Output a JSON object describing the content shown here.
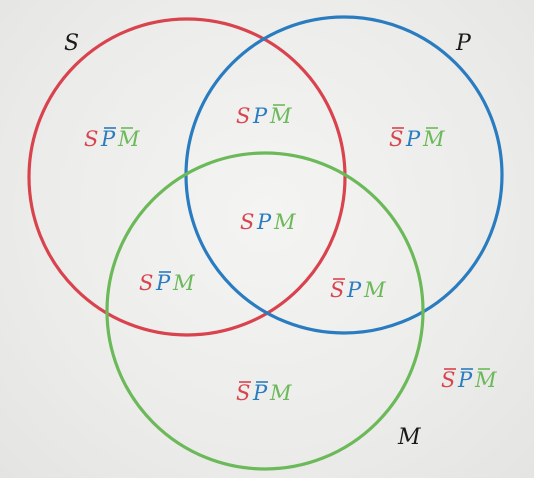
{
  "diagram": {
    "sets": [
      {
        "id": "S",
        "label": "S",
        "color": "#d9434e"
      },
      {
        "id": "P",
        "label": "P",
        "color": "#2a7cc0"
      },
      {
        "id": "M",
        "label": "M",
        "color": "#6cb95a"
      }
    ],
    "regions": [
      {
        "id": "s-pbar-mbar",
        "terms": [
          {
            "letter": "S",
            "bar": false,
            "set": "S"
          },
          {
            "letter": "P",
            "bar": true,
            "set": "P"
          },
          {
            "letter": "M",
            "bar": true,
            "set": "M"
          }
        ]
      },
      {
        "id": "s-p-mbar",
        "terms": [
          {
            "letter": "S",
            "bar": false,
            "set": "S"
          },
          {
            "letter": "P",
            "bar": false,
            "set": "P"
          },
          {
            "letter": "M",
            "bar": true,
            "set": "M"
          }
        ]
      },
      {
        "id": "sbar-p-mbar",
        "terms": [
          {
            "letter": "S",
            "bar": true,
            "set": "S"
          },
          {
            "letter": "P",
            "bar": false,
            "set": "P"
          },
          {
            "letter": "M",
            "bar": true,
            "set": "M"
          }
        ]
      },
      {
        "id": "s-p-m",
        "terms": [
          {
            "letter": "S",
            "bar": false,
            "set": "S"
          },
          {
            "letter": "P",
            "bar": false,
            "set": "P"
          },
          {
            "letter": "M",
            "bar": false,
            "set": "M"
          }
        ]
      },
      {
        "id": "s-pbar-m",
        "terms": [
          {
            "letter": "S",
            "bar": false,
            "set": "S"
          },
          {
            "letter": "P",
            "bar": true,
            "set": "P"
          },
          {
            "letter": "M",
            "bar": false,
            "set": "M"
          }
        ]
      },
      {
        "id": "sbar-p-m",
        "terms": [
          {
            "letter": "S",
            "bar": true,
            "set": "S"
          },
          {
            "letter": "P",
            "bar": false,
            "set": "P"
          },
          {
            "letter": "M",
            "bar": false,
            "set": "M"
          }
        ]
      },
      {
        "id": "sbar-pbar-m",
        "terms": [
          {
            "letter": "S",
            "bar": true,
            "set": "S"
          },
          {
            "letter": "P",
            "bar": true,
            "set": "P"
          },
          {
            "letter": "M",
            "bar": false,
            "set": "M"
          }
        ]
      },
      {
        "id": "sbar-pbar-mbar",
        "terms": [
          {
            "letter": "S",
            "bar": true,
            "set": "S"
          },
          {
            "letter": "P",
            "bar": true,
            "set": "P"
          },
          {
            "letter": "M",
            "bar": true,
            "set": "M"
          }
        ]
      }
    ]
  }
}
